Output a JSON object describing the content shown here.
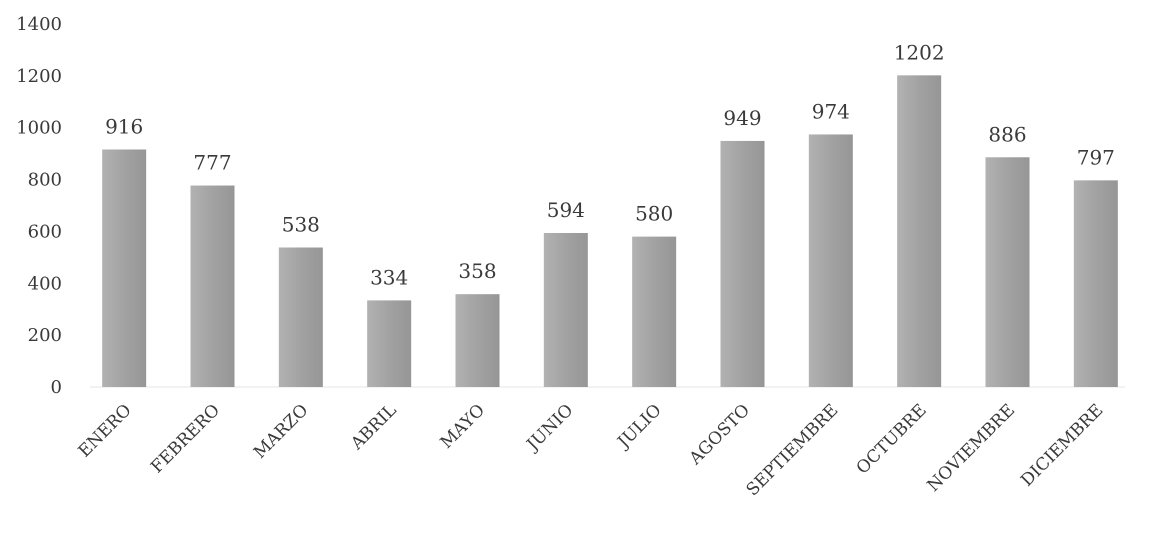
{
  "chart_data": {
    "type": "bar",
    "title": "",
    "xlabel": "",
    "ylabel": "",
    "ylim": [
      0,
      1400
    ],
    "yticks": [
      0,
      200,
      400,
      600,
      800,
      1000,
      1200,
      1400
    ],
    "grid": false,
    "legend": "none",
    "bar_color": "#9e9e9e",
    "categories": [
      "ENERO",
      "FEBRERO",
      "MARZO",
      "ABRIL",
      "MAYO",
      "JUNIO",
      "JULIO",
      "AGOSTO",
      "SEPTIEMBRE",
      "OCTUBRE",
      "NOVIEMBRE",
      "DICIEMBRE"
    ],
    "values": [
      916,
      777,
      538,
      334,
      358,
      594,
      580,
      949,
      974,
      1202,
      886,
      797
    ]
  }
}
